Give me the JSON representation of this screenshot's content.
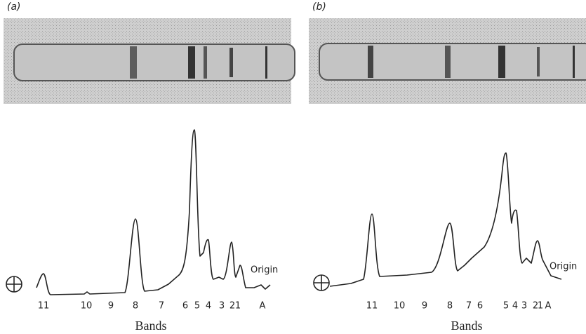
{
  "panels": [
    {
      "label": "(a)",
      "band_labels": [
        "11",
        "10",
        "9",
        "8",
        "7",
        "6",
        "5",
        "4",
        "3",
        "2",
        "1",
        "A"
      ],
      "origin": "Origin",
      "axis_title": "Bands"
    },
    {
      "label": "(b)",
      "band_labels": [
        "11",
        "10",
        "9",
        "8",
        "7",
        "6",
        "5",
        "4",
        "3",
        "2",
        "1",
        "A"
      ],
      "origin": "Origin",
      "axis_title": "Bands"
    }
  ]
}
